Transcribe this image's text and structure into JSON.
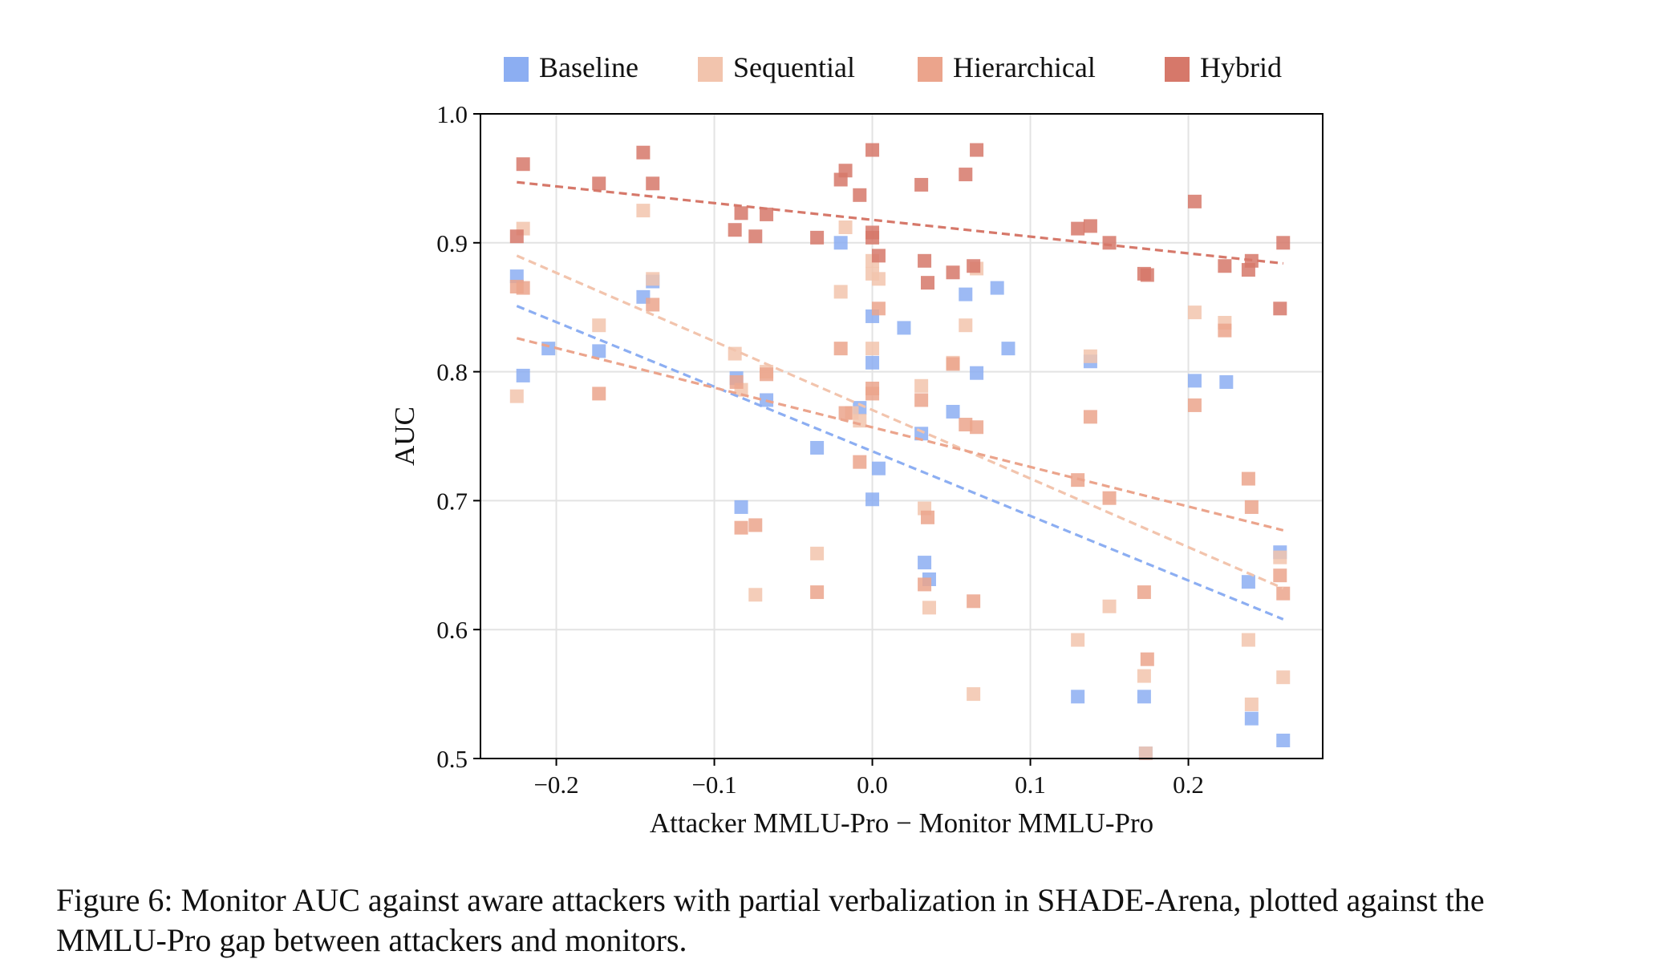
{
  "chart_data": {
    "type": "scatter",
    "title": "",
    "xlabel": "Attacker MMLU-Pro − Monitor MMLU-Pro",
    "ylabel": "AUC",
    "xlim": [
      -0.248,
      0.285
    ],
    "ylim": [
      0.5,
      1.0
    ],
    "xticks": [
      -0.2,
      -0.1,
      0.0,
      0.1,
      0.2
    ],
    "xtick_labels": [
      "−0.2",
      "−0.1",
      "0.0",
      "0.1",
      "0.2"
    ],
    "yticks": [
      0.5,
      0.6,
      0.7,
      0.8,
      0.9,
      1.0
    ],
    "ytick_labels": [
      "0.5",
      "0.6",
      "0.7",
      "0.8",
      "0.9",
      "1.0"
    ],
    "grid": true,
    "legend_position": "top, outside plot, horizontal",
    "marker": "square",
    "series": [
      {
        "name": "Baseline",
        "color": "#8caef2",
        "trend": [
          [
            -0.225,
            0.851
          ],
          [
            0.26,
            0.608
          ]
        ],
        "points": [
          [
            -0.225,
            0.874
          ],
          [
            -0.221,
            0.797
          ],
          [
            -0.205,
            0.818
          ],
          [
            -0.173,
            0.816
          ],
          [
            -0.145,
            0.858
          ],
          [
            -0.139,
            0.87
          ],
          [
            -0.086,
            0.795
          ],
          [
            -0.083,
            0.695
          ],
          [
            -0.067,
            0.778
          ],
          [
            -0.035,
            0.741
          ],
          [
            -0.02,
            0.9
          ],
          [
            -0.008,
            0.772
          ],
          [
            0.0,
            0.843
          ],
          [
            0.0,
            0.807
          ],
          [
            0.0,
            0.701
          ],
          [
            0.004,
            0.725
          ],
          [
            0.02,
            0.834
          ],
          [
            0.031,
            0.752
          ],
          [
            0.033,
            0.652
          ],
          [
            0.036,
            0.639
          ],
          [
            0.051,
            0.769
          ],
          [
            0.059,
            0.86
          ],
          [
            0.066,
            0.799
          ],
          [
            0.079,
            0.865
          ],
          [
            0.086,
            0.818
          ],
          [
            0.13,
            0.548
          ],
          [
            0.138,
            0.808
          ],
          [
            0.172,
            0.548
          ],
          [
            0.173,
            0.504
          ],
          [
            0.204,
            0.793
          ],
          [
            0.224,
            0.792
          ],
          [
            0.238,
            0.637
          ],
          [
            0.24,
            0.531
          ],
          [
            0.258,
            0.66
          ],
          [
            0.26,
            0.514
          ]
        ]
      },
      {
        "name": "Sequential",
        "color": "#f2c4ad",
        "trend": [
          [
            -0.225,
            0.89
          ],
          [
            0.26,
            0.632
          ]
        ],
        "points": [
          [
            -0.225,
            0.781
          ],
          [
            -0.221,
            0.911
          ],
          [
            -0.173,
            0.836
          ],
          [
            -0.145,
            0.925
          ],
          [
            -0.139,
            0.872
          ],
          [
            -0.087,
            0.814
          ],
          [
            -0.083,
            0.786
          ],
          [
            -0.074,
            0.627
          ],
          [
            -0.067,
            0.8
          ],
          [
            -0.035,
            0.659
          ],
          [
            -0.02,
            0.862
          ],
          [
            -0.017,
            0.912
          ],
          [
            -0.013,
            0.768
          ],
          [
            -0.008,
            0.762
          ],
          [
            0.0,
            0.886
          ],
          [
            0.0,
            0.876
          ],
          [
            0.0,
            0.818
          ],
          [
            0.004,
            0.872
          ],
          [
            0.031,
            0.789
          ],
          [
            0.033,
            0.694
          ],
          [
            0.036,
            0.617
          ],
          [
            0.051,
            0.807
          ],
          [
            0.059,
            0.836
          ],
          [
            0.064,
            0.55
          ],
          [
            0.066,
            0.88
          ],
          [
            0.13,
            0.592
          ],
          [
            0.138,
            0.812
          ],
          [
            0.15,
            0.618
          ],
          [
            0.172,
            0.564
          ],
          [
            0.173,
            0.504
          ],
          [
            0.204,
            0.846
          ],
          [
            0.223,
            0.838
          ],
          [
            0.238,
            0.592
          ],
          [
            0.24,
            0.542
          ],
          [
            0.258,
            0.656
          ],
          [
            0.26,
            0.563
          ]
        ]
      },
      {
        "name": "Hierarchical",
        "color": "#eba48c",
        "trend": [
          [
            -0.225,
            0.826
          ],
          [
            0.26,
            0.677
          ]
        ],
        "points": [
          [
            -0.225,
            0.866
          ],
          [
            -0.221,
            0.865
          ],
          [
            -0.173,
            0.783
          ],
          [
            -0.139,
            0.852
          ],
          [
            -0.086,
            0.792
          ],
          [
            -0.083,
            0.679
          ],
          [
            -0.074,
            0.681
          ],
          [
            -0.067,
            0.798
          ],
          [
            -0.035,
            0.629
          ],
          [
            -0.02,
            0.818
          ],
          [
            -0.017,
            0.768
          ],
          [
            -0.008,
            0.73
          ],
          [
            0.0,
            0.787
          ],
          [
            0.0,
            0.783
          ],
          [
            0.004,
            0.849
          ],
          [
            0.031,
            0.778
          ],
          [
            0.033,
            0.635
          ],
          [
            0.035,
            0.687
          ],
          [
            0.051,
            0.806
          ],
          [
            0.059,
            0.759
          ],
          [
            0.064,
            0.622
          ],
          [
            0.066,
            0.757
          ],
          [
            0.13,
            0.716
          ],
          [
            0.138,
            0.765
          ],
          [
            0.15,
            0.702
          ],
          [
            0.172,
            0.629
          ],
          [
            0.174,
            0.577
          ],
          [
            0.204,
            0.774
          ],
          [
            0.223,
            0.832
          ],
          [
            0.238,
            0.717
          ],
          [
            0.24,
            0.695
          ],
          [
            0.258,
            0.642
          ],
          [
            0.26,
            0.628
          ]
        ]
      },
      {
        "name": "Hybrid",
        "color": "#d6786a",
        "trend": [
          [
            -0.225,
            0.947
          ],
          [
            0.26,
            0.884
          ]
        ],
        "points": [
          [
            -0.225,
            0.905
          ],
          [
            -0.221,
            0.961
          ],
          [
            -0.173,
            0.946
          ],
          [
            -0.145,
            0.97
          ],
          [
            -0.139,
            0.946
          ],
          [
            -0.087,
            0.91
          ],
          [
            -0.083,
            0.923
          ],
          [
            -0.074,
            0.905
          ],
          [
            -0.067,
            0.922
          ],
          [
            -0.035,
            0.904
          ],
          [
            -0.02,
            0.949
          ],
          [
            -0.017,
            0.956
          ],
          [
            -0.008,
            0.937
          ],
          [
            0.0,
            0.972
          ],
          [
            0.0,
            0.908
          ],
          [
            0.0,
            0.904
          ],
          [
            0.004,
            0.89
          ],
          [
            0.031,
            0.945
          ],
          [
            0.033,
            0.886
          ],
          [
            0.035,
            0.869
          ],
          [
            0.051,
            0.877
          ],
          [
            0.059,
            0.953
          ],
          [
            0.064,
            0.882
          ],
          [
            0.066,
            0.972
          ],
          [
            0.13,
            0.911
          ],
          [
            0.138,
            0.913
          ],
          [
            0.15,
            0.9
          ],
          [
            0.172,
            0.876
          ],
          [
            0.174,
            0.875
          ],
          [
            0.204,
            0.932
          ],
          [
            0.223,
            0.882
          ],
          [
            0.238,
            0.879
          ],
          [
            0.24,
            0.886
          ],
          [
            0.258,
            0.849
          ],
          [
            0.26,
            0.9
          ]
        ]
      }
    ]
  },
  "caption": {
    "line1": "Figure 6: Monitor AUC against aware attackers with partial verbalization in SHADE-Arena, plotted against the",
    "line2": "MMLU-Pro gap between attackers and monitors."
  }
}
